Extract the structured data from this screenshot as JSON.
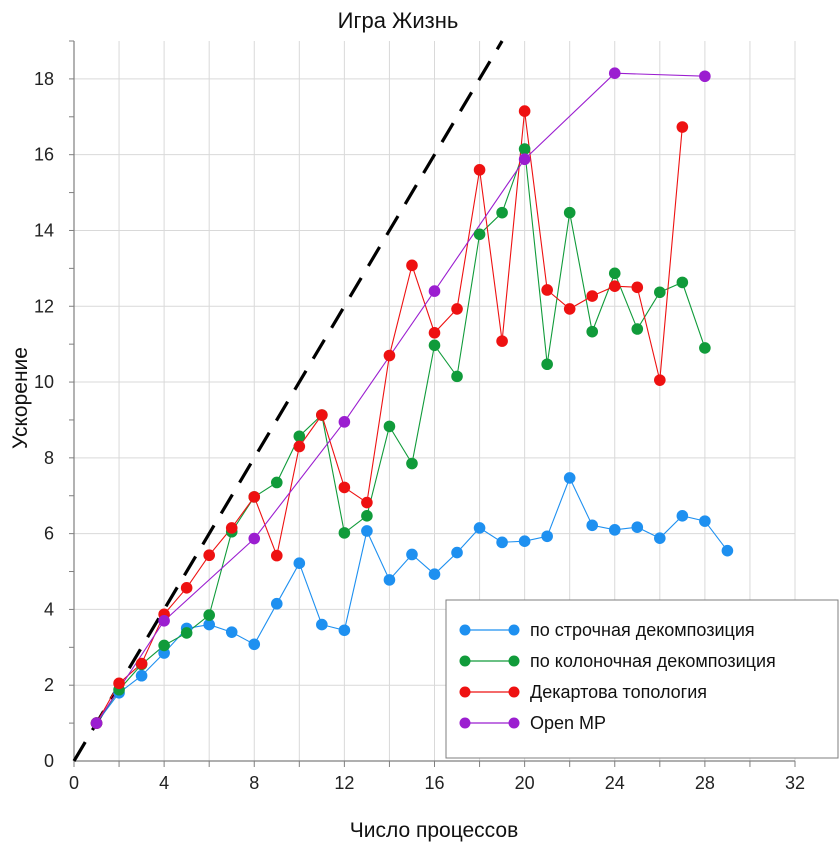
{
  "chart_data": {
    "type": "line",
    "title": "Игра Жизнь",
    "xlabel": "Число процессов",
    "ylabel": "Ускорение",
    "xlim": [
      0,
      32
    ],
    "ylim": [
      0,
      19
    ],
    "x_ticks": [
      0,
      4,
      8,
      12,
      16,
      20,
      24,
      28,
      32
    ],
    "y_ticks": [
      0,
      2,
      4,
      6,
      8,
      10,
      12,
      14,
      16,
      18
    ],
    "grid": true,
    "legend_position": "bottom-right",
    "ideal_line": {
      "x": [
        0,
        19
      ],
      "y": [
        0,
        19
      ],
      "color": "#000000",
      "style": "dashed"
    },
    "series": [
      {
        "name": "по строчная декомпозиция",
        "color": "#1e90f0",
        "x": [
          1,
          2,
          3,
          4,
          5,
          6,
          7,
          8,
          9,
          10,
          11,
          12,
          13,
          14,
          15,
          16,
          17,
          18,
          19,
          20,
          21,
          22,
          23,
          24,
          25,
          26,
          27,
          28,
          29
        ],
        "y": [
          1.0,
          1.8,
          2.25,
          2.85,
          3.5,
          3.6,
          3.4,
          3.08,
          4.15,
          5.22,
          3.6,
          3.45,
          6.07,
          4.78,
          5.45,
          4.93,
          5.5,
          6.15,
          5.77,
          5.8,
          5.93,
          7.47,
          6.22,
          6.1,
          6.17,
          5.88,
          6.47,
          6.33,
          5.55
        ]
      },
      {
        "name": "по колоночная декомпозиция",
        "color": "#109b3a",
        "x": [
          1,
          2,
          3,
          4,
          5,
          6,
          7,
          8,
          9,
          10,
          11,
          12,
          13,
          14,
          15,
          16,
          17,
          18,
          19,
          20,
          21,
          22,
          23,
          24,
          25,
          26,
          27,
          28
        ],
        "y": [
          1.0,
          1.88,
          2.55,
          3.05,
          3.38,
          3.85,
          6.05,
          6.97,
          7.35,
          8.57,
          9.13,
          6.02,
          6.47,
          8.83,
          7.85,
          10.97,
          10.15,
          13.9,
          14.47,
          16.15,
          10.47,
          14.47,
          11.33,
          12.87,
          11.4,
          12.37,
          12.63,
          10.9
        ]
      },
      {
        "name": "Декартова топология",
        "color": "#ee1111",
        "x": [
          1,
          2,
          3,
          4,
          5,
          6,
          7,
          8,
          9,
          10,
          11,
          12,
          13,
          14,
          15,
          16,
          17,
          18,
          19,
          20,
          21,
          22,
          23,
          24,
          25,
          26,
          27
        ],
        "y": [
          1.0,
          2.05,
          2.57,
          3.87,
          4.57,
          5.43,
          6.15,
          6.97,
          5.42,
          8.3,
          9.13,
          7.22,
          6.82,
          10.7,
          13.08,
          11.3,
          11.93,
          15.6,
          11.08,
          17.15,
          12.43,
          11.93,
          12.27,
          12.53,
          12.5,
          10.05,
          16.73
        ]
      },
      {
        "name": "Open MP",
        "color": "#9b1ed0",
        "x": [
          1,
          4,
          8,
          12,
          16,
          20,
          24,
          28
        ],
        "y": [
          1.0,
          3.7,
          5.87,
          8.95,
          12.4,
          15.88,
          18.15,
          18.07
        ]
      }
    ]
  }
}
